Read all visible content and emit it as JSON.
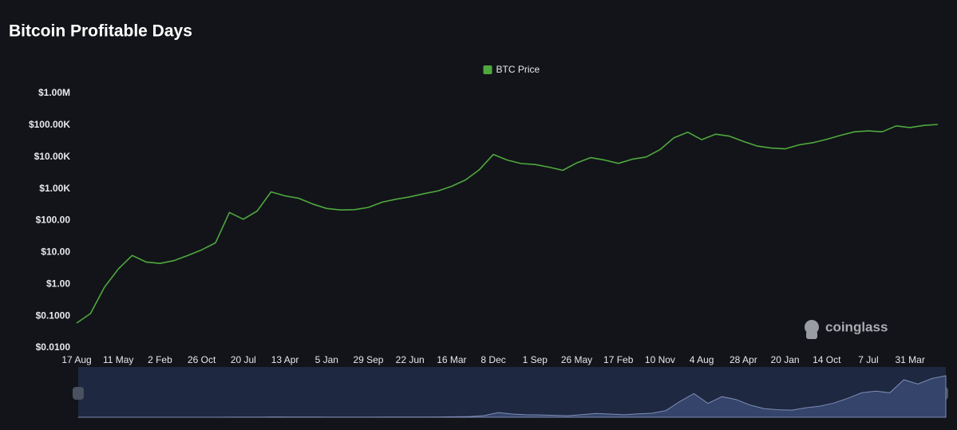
{
  "chart_data": {
    "type": "line",
    "title": "Bitcoin Profitable Days",
    "watermark": "coinglass",
    "yscale": "log",
    "ylim": [
      0.01,
      1000000
    ],
    "yticks": [
      {
        "value": 0.01,
        "label": "$0.0100"
      },
      {
        "value": 0.1,
        "label": "$0.1000"
      },
      {
        "value": 1,
        "label": "$1.00"
      },
      {
        "value": 10,
        "label": "$10.00"
      },
      {
        "value": 100,
        "label": "$100.00"
      },
      {
        "value": 1000,
        "label": "$1.00K"
      },
      {
        "value": 10000,
        "label": "$10.00K"
      },
      {
        "value": 100000,
        "label": "$100.00K"
      },
      {
        "value": 1000000,
        "label": "$1.00M"
      }
    ],
    "grid": false,
    "legend": "top",
    "categories": [
      "17 Aug",
      null,
      null,
      "11 May",
      null,
      null,
      "2 Feb",
      null,
      null,
      "26 Oct",
      null,
      null,
      "20 Jul",
      null,
      null,
      "13 Apr",
      null,
      null,
      "5 Jan",
      null,
      null,
      "29 Sep",
      null,
      null,
      "22 Jun",
      null,
      null,
      "16 Mar",
      null,
      null,
      "8 Dec",
      null,
      null,
      "1 Sep",
      null,
      null,
      "26 May",
      null,
      null,
      "17 Feb",
      null,
      null,
      "10 Nov",
      null,
      null,
      "4 Aug",
      null,
      null,
      "28 Apr",
      null,
      null,
      "20 Jan",
      null,
      null,
      "14 Oct",
      null,
      null,
      "7 Jul",
      null,
      null,
      "31 Mar",
      null,
      null
    ],
    "series": [
      {
        "name": "BTC Price",
        "color": "#4fa83d",
        "values": [
          0.06,
          0.12,
          0.8,
          3,
          8,
          5,
          4.5,
          5.5,
          8,
          12,
          20,
          180,
          110,
          200,
          800,
          600,
          500,
          330,
          240,
          215,
          220,
          260,
          380,
          470,
          560,
          700,
          850,
          1200,
          1900,
          4000,
          12000,
          8000,
          6200,
          5800,
          4800,
          3800,
          6500,
          9500,
          8000,
          6300,
          8500,
          10000,
          17000,
          40000,
          60000,
          35000,
          52000,
          45000,
          31000,
          22000,
          19000,
          18000,
          24000,
          28000,
          36000,
          48000,
          62000,
          66000,
          62000,
          95000,
          84000,
          98000,
          105000
        ]
      }
    ]
  }
}
